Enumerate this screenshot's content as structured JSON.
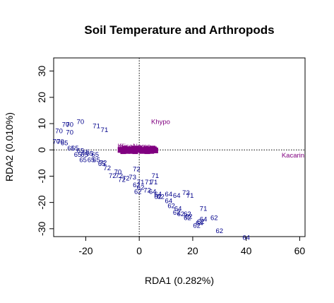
{
  "chart_data": {
    "type": "scatter",
    "title": "Soil Temperature and Arthropods",
    "xlabel": "RDA1 (0.282%)",
    "ylabel": "RDA2 (0.010%)",
    "xlim": [
      -32,
      62
    ],
    "ylim": [
      -33,
      35
    ],
    "xticks": [
      -20,
      0,
      20,
      40,
      60
    ],
    "yticks": [
      -30,
      -20,
      -10,
      0,
      10,
      20,
      30
    ],
    "reference_lines": {
      "x": 0,
      "y": 0,
      "style": "dotted"
    },
    "colors": {
      "sites": "#00008b",
      "species": "#800080",
      "box": "#000000"
    },
    "sites": [
      {
        "label": "70",
        "x": -22,
        "y": 10.5
      },
      {
        "label": "70",
        "x": -26,
        "y": 9.5
      },
      {
        "label": "70",
        "x": -27.5,
        "y": 9.5
      },
      {
        "label": "71",
        "x": -16,
        "y": 9
      },
      {
        "label": "71",
        "x": -13,
        "y": 7.5
      },
      {
        "label": "70",
        "x": -30,
        "y": 7
      },
      {
        "label": "70",
        "x": -26,
        "y": 6.5
      },
      {
        "label": "70",
        "x": -31,
        "y": 3
      },
      {
        "label": "70",
        "x": -29.5,
        "y": 3
      },
      {
        "label": "65",
        "x": -28,
        "y": 2.5
      },
      {
        "label": "65",
        "x": -25.5,
        "y": 0.5
      },
      {
        "label": "65",
        "x": -24,
        "y": 0.5
      },
      {
        "label": "65",
        "x": -22,
        "y": -0.5
      },
      {
        "label": "65",
        "x": -20,
        "y": -1
      },
      {
        "label": "65",
        "x": -18.5,
        "y": -1.5
      },
      {
        "label": "65",
        "x": -23,
        "y": -2
      },
      {
        "label": "65",
        "x": -20.5,
        "y": -2
      },
      {
        "label": "65",
        "x": -16.5,
        "y": -2
      },
      {
        "label": "65",
        "x": -21,
        "y": -4
      },
      {
        "label": "65",
        "x": -18,
        "y": -4
      },
      {
        "label": "65",
        "x": -16,
        "y": -4
      },
      {
        "label": "72",
        "x": -13.5,
        "y": -5
      },
      {
        "label": "65",
        "x": -14,
        "y": -5.5
      },
      {
        "label": "72",
        "x": -12,
        "y": -7
      },
      {
        "label": "72",
        "x": -1,
        "y": -7.5
      },
      {
        "label": "70",
        "x": -8,
        "y": -8.5
      },
      {
        "label": "72",
        "x": -10,
        "y": -10
      },
      {
        "label": "72",
        "x": -7.5,
        "y": -10
      },
      {
        "label": "72",
        "x": -5,
        "y": -11
      },
      {
        "label": "73",
        "x": -2.5,
        "y": -10.5
      },
      {
        "label": "71",
        "x": 6,
        "y": -10
      },
      {
        "label": "72",
        "x": -6.5,
        "y": -11.5
      },
      {
        "label": "71",
        "x": 0.5,
        "y": -12.5
      },
      {
        "label": "71",
        "x": 3.5,
        "y": -12.5
      },
      {
        "label": "71",
        "x": 5.5,
        "y": -12.5
      },
      {
        "label": "62",
        "x": -1,
        "y": -13.5
      },
      {
        "label": "62",
        "x": 0.5,
        "y": -14.5
      },
      {
        "label": "62",
        "x": -0.5,
        "y": -16
      },
      {
        "label": "72",
        "x": 3,
        "y": -15.5
      },
      {
        "label": "64",
        "x": 5,
        "y": -16
      },
      {
        "label": "64",
        "x": 7,
        "y": -17
      },
      {
        "label": "62",
        "x": 7,
        "y": -18
      },
      {
        "label": "62",
        "x": 8,
        "y": -18
      },
      {
        "label": "64",
        "x": 11,
        "y": -17
      },
      {
        "label": "64",
        "x": 14,
        "y": -17.5
      },
      {
        "label": "72",
        "x": 17.5,
        "y": -16.5
      },
      {
        "label": "71",
        "x": 19,
        "y": -17.5
      },
      {
        "label": "64",
        "x": 11,
        "y": -19.5
      },
      {
        "label": "62",
        "x": 12,
        "y": -21.5
      },
      {
        "label": "64",
        "x": 14.5,
        "y": -22.5
      },
      {
        "label": "62",
        "x": 14,
        "y": -24
      },
      {
        "label": "62",
        "x": 15.5,
        "y": -24.5
      },
      {
        "label": "71",
        "x": 24,
        "y": -22.5
      },
      {
        "label": "62",
        "x": 18,
        "y": -24.5
      },
      {
        "label": "62",
        "x": 18.5,
        "y": -25.5
      },
      {
        "label": "62",
        "x": 18,
        "y": -26
      },
      {
        "label": "64",
        "x": 24,
        "y": -26.5
      },
      {
        "label": "62",
        "x": 28,
        "y": -26
      },
      {
        "label": "62",
        "x": 23,
        "y": -27.5
      },
      {
        "label": "64",
        "x": 22.5,
        "y": -28
      },
      {
        "label": "62",
        "x": 21.5,
        "y": -29
      },
      {
        "label": "62",
        "x": 30,
        "y": -31
      },
      {
        "label": "64",
        "x": 40,
        "y": -33.5
      }
    ],
    "species": [
      {
        "label": "Khypo",
        "x": 8,
        "y": 10.5
      },
      {
        "label": "Kacarin",
        "x": 57.5,
        "y": -2.2
      },
      {
        "label": "Ki",
        "x": -7,
        "y": 1.3
      },
      {
        "label": "KisoNomo",
        "x": -1.5,
        "y": 1.3
      }
    ],
    "species_cluster": [
      {
        "x": -6.5,
        "y": 0
      },
      {
        "x": -5.5,
        "y": 0.5
      },
      {
        "x": -4.5,
        "y": -0.4
      },
      {
        "x": -3.5,
        "y": 0.3
      },
      {
        "x": -2.5,
        "y": 0
      },
      {
        "x": -1.5,
        "y": -0.5
      },
      {
        "x": -0.5,
        "y": 0.4
      },
      {
        "x": 0.5,
        "y": 0
      },
      {
        "x": 1.5,
        "y": -0.3
      },
      {
        "x": 2.5,
        "y": 0.4
      },
      {
        "x": 3.5,
        "y": 0
      },
      {
        "x": 4.5,
        "y": -0.4
      },
      {
        "x": 5.5,
        "y": 0.2
      },
      {
        "x": -6,
        "y": -0.5
      },
      {
        "x": -3,
        "y": -0.4
      },
      {
        "x": 0,
        "y": 0.5
      },
      {
        "x": 3,
        "y": -0.5
      },
      {
        "x": 5,
        "y": 0.5
      },
      {
        "x": -5,
        "y": 0
      },
      {
        "x": -2,
        "y": 0.5
      },
      {
        "x": 1,
        "y": -0.4
      },
      {
        "x": 4,
        "y": 0.3
      },
      {
        "x": 6,
        "y": -0.2
      },
      {
        "x": -7,
        "y": 0
      }
    ]
  }
}
